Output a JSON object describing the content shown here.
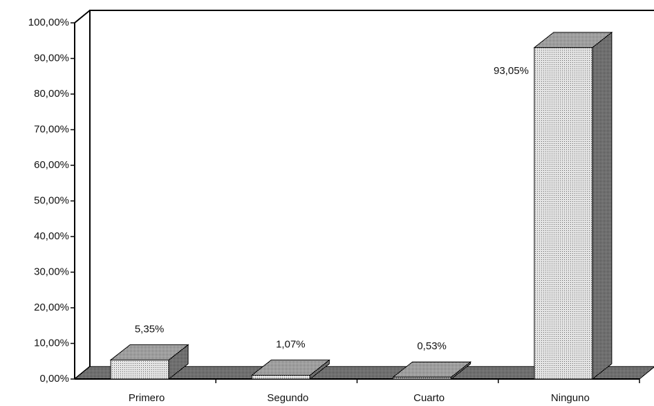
{
  "chart_data": {
    "type": "bar3d",
    "categories": [
      "Primero",
      "Segundo",
      "Cuarto",
      "Ninguno"
    ],
    "values": [
      5.35,
      1.07,
      0.53,
      93.05
    ],
    "value_labels": [
      "5,35%",
      "1,07%",
      "0,53%",
      "93,05%"
    ],
    "ylim": [
      0,
      100
    ],
    "yticks": [
      {
        "value": 0,
        "label": "0,00%"
      },
      {
        "value": 10,
        "label": "10,00%"
      },
      {
        "value": 20,
        "label": "20,00%"
      },
      {
        "value": 30,
        "label": "30,00%"
      },
      {
        "value": 40,
        "label": "40,00%"
      },
      {
        "value": 50,
        "label": "50,00%"
      },
      {
        "value": 60,
        "label": "60,00%"
      },
      {
        "value": 70,
        "label": "70,00%"
      },
      {
        "value": 80,
        "label": "80,00%"
      },
      {
        "value": 90,
        "label": "90,00%"
      },
      {
        "value": 100,
        "label": "100,00%"
      }
    ],
    "color": "#d8d8d8"
  }
}
